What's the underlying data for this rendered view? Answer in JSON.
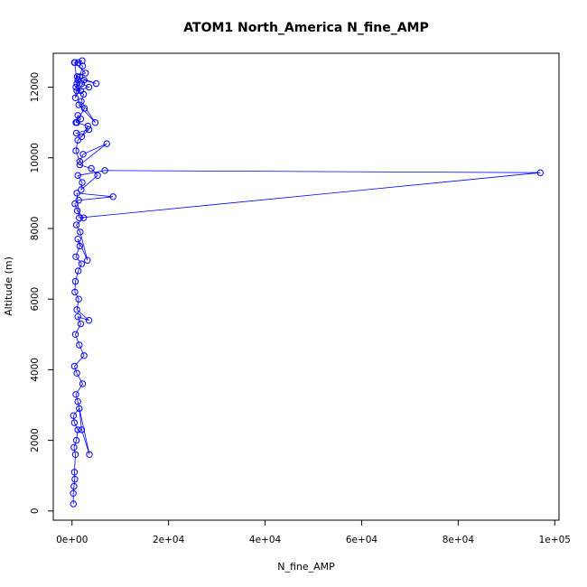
{
  "chart_data": {
    "type": "line",
    "title": "ATOM1 North_America N_fine_AMP",
    "xlabel": "N_fine_AMP",
    "ylabel": "Altitude (m)",
    "xlim": [
      -3880,
      100880
    ],
    "ylim": [
      -260,
      12960
    ],
    "x_ticks": [
      {
        "value": 0,
        "label": "0e+00"
      },
      {
        "value": 20000,
        "label": "2e+04"
      },
      {
        "value": 40000,
        "label": "4e+04"
      },
      {
        "value": 60000,
        "label": "6e+04"
      },
      {
        "value": 80000,
        "label": "8e+04"
      },
      {
        "value": 100000,
        "label": "1e+05"
      }
    ],
    "y_ticks": [
      {
        "value": 0,
        "label": "0"
      },
      {
        "value": 2000,
        "label": "2000"
      },
      {
        "value": 4000,
        "label": "4000"
      },
      {
        "value": 6000,
        "label": "6000"
      },
      {
        "value": 8000,
        "label": "8000"
      },
      {
        "value": 10000,
        "label": "10000"
      },
      {
        "value": 12000,
        "label": "12000"
      }
    ],
    "grid": false,
    "legend": "none",
    "series_color": "#0000ff",
    "marker": "open-circle",
    "series": [
      {
        "x": [
          300,
          250,
          400,
          600,
          500,
          700,
          400,
          900,
          1200,
          500,
          300,
          1500,
          2000,
          3600,
          1200,
          800,
          2200,
          1000,
          500,
          2500,
          1500,
          700,
          1800,
          1200,
          3500,
          1000,
          1400,
          600,
          700,
          1300,
          2000,
          800,
          1600,
          1200,
          3200,
          1700,
          900,
          2400,
          1100,
          600,
          1400,
          8500,
          1000,
          1500,
          97000,
          6800,
          1200,
          2100,
          1900,
          5300,
          4000,
          1600,
          7200,
          2300,
          1600,
          800,
          1200,
          3500,
          900,
          2000,
          3300,
          1000,
          1800,
          1200,
          800,
          2600,
          1400,
          4800,
          1900,
          2400,
          1000,
          3500,
          2000,
          1200,
          700,
          2500,
          5000,
          1100,
          2800,
          500,
          1300,
          2200,
          1600,
          800,
          1800,
          1000,
          600,
          2100
        ],
        "y": [
          200,
          500,
          700,
          900,
          1100,
          1600,
          1800,
          2000,
          2300,
          2500,
          2700,
          2900,
          2300,
          1600,
          3100,
          3300,
          3600,
          3900,
          4100,
          4400,
          4700,
          5000,
          5300,
          5500,
          5400,
          5700,
          6000,
          6200,
          6500,
          6800,
          7000,
          7200,
          7500,
          7700,
          7100,
          7900,
          8100,
          8300,
          8500,
          8700,
          8800,
          8900,
          9000,
          8300,
          9580,
          9640,
          9500,
          9300,
          9100,
          9500,
          9700,
          9800,
          10400,
          10100,
          9900,
          10200,
          10500,
          10800,
          10700,
          10600,
          10900,
          11000,
          11100,
          11200,
          11000,
          11400,
          11500,
          11000,
          11600,
          11800,
          11900,
          12000,
          12100,
          12200,
          11700,
          12200,
          12100,
          12300,
          12400,
          12700,
          12700,
          12600,
          12300,
          12000,
          11900,
          12100,
          12700,
          12750
        ]
      }
    ]
  }
}
